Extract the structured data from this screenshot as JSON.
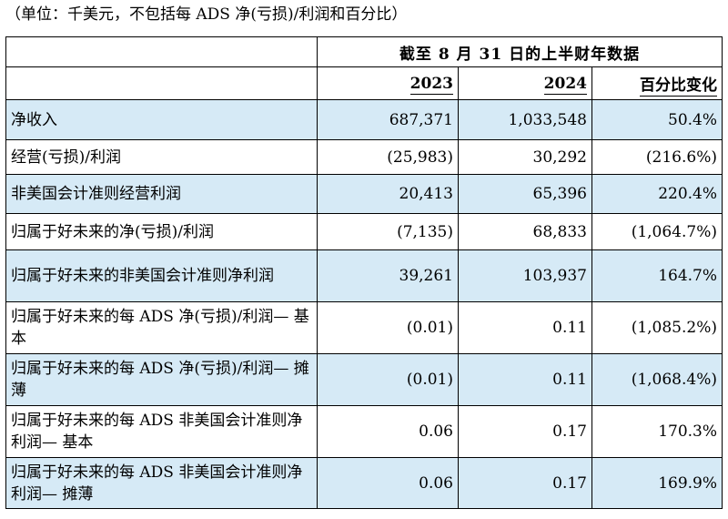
{
  "unit_note": "（单位：千美元，不包括每 ADS 净(亏损)/利润和百分比）",
  "table": {
    "period_header": "截至 8 月 31 日的上半财年数据",
    "columns": [
      "2023",
      "2024",
      "百分比变化"
    ],
    "rows": [
      {
        "label": "净收入",
        "v2023": "687,371",
        "v2024": "1,033,548",
        "change": "50.4%"
      },
      {
        "label": "经营(亏损)/利润",
        "v2023": "(25,983)",
        "v2024": "30,292",
        "change": "(216.6%)"
      },
      {
        "label": "非美国会计准则经营利润",
        "v2023": "20,413",
        "v2024": "65,396",
        "change": "220.4%"
      },
      {
        "label": "归属于好未来的净(亏损)/利润",
        "v2023": "(7,135)",
        "v2024": "68,833",
        "change": "(1,064.7%)"
      },
      {
        "label": "归属于好未来的非美国会计准则净利润",
        "v2023": "39,261",
        "v2024": "103,937",
        "change": "164.7%"
      },
      {
        "label": "归属于好未来的每 ADS 净(亏损)/利润— 基本",
        "v2023": "(0.01)",
        "v2024": "0.11",
        "change": "(1,085.2%)"
      },
      {
        "label": "归属于好未来的每 ADS 净(亏损)/利润— 摊薄",
        "v2023": "(0.01)",
        "v2024": "0.11",
        "change": "(1,068.4%)"
      },
      {
        "label": "归属于好未来的每 ADS 非美国会计准则净利润— 基本",
        "v2023": "0.06",
        "v2024": "0.17",
        "change": "170.3%"
      },
      {
        "label": "归属于好未来的每 ADS 非美国会计准则净利润— 摊薄",
        "v2023": "0.06",
        "v2024": "0.17",
        "change": "169.9%"
      }
    ]
  },
  "colors": {
    "shade": "#d6eaf6",
    "border": "#000000"
  }
}
